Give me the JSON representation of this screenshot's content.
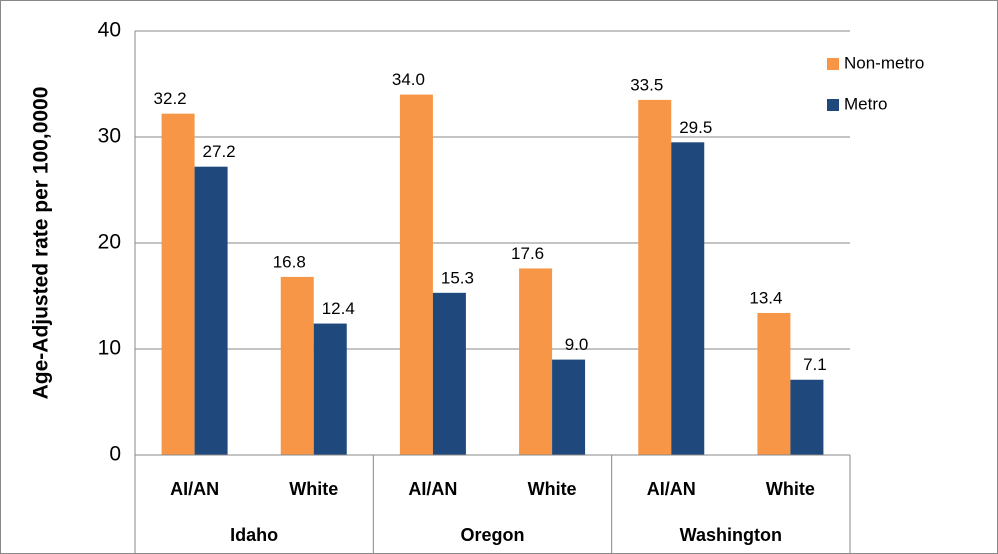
{
  "chart_data": {
    "type": "bar",
    "y_label": "Age-Adjusted rate per 100,0000",
    "categories": [
      "AI/AN",
      "White",
      "AI/AN",
      "White",
      "AI/AN",
      "White"
    ],
    "groups": [
      "Idaho",
      "Oregon",
      "Washington"
    ],
    "series": [
      {
        "name": "Non-metro",
        "color": "#f79646",
        "values": [
          32.2,
          16.8,
          34.0,
          17.6,
          33.5,
          13.4
        ],
        "value_labels": [
          "32.2",
          "16.8",
          "34.0",
          "17.6",
          "33.5",
          "13.4"
        ]
      },
      {
        "name": "Metro",
        "color": "#1f497d",
        "values": [
          27.2,
          12.4,
          15.3,
          9.0,
          29.5,
          7.1
        ],
        "value_labels": [
          "27.2",
          "12.4",
          "15.3",
          "9.0",
          "29.5",
          "7.1"
        ]
      }
    ],
    "ylim": [
      0,
      40
    ],
    "yticks": [
      0,
      10,
      20,
      30,
      40
    ],
    "grid": true,
    "legend": "top-right"
  }
}
